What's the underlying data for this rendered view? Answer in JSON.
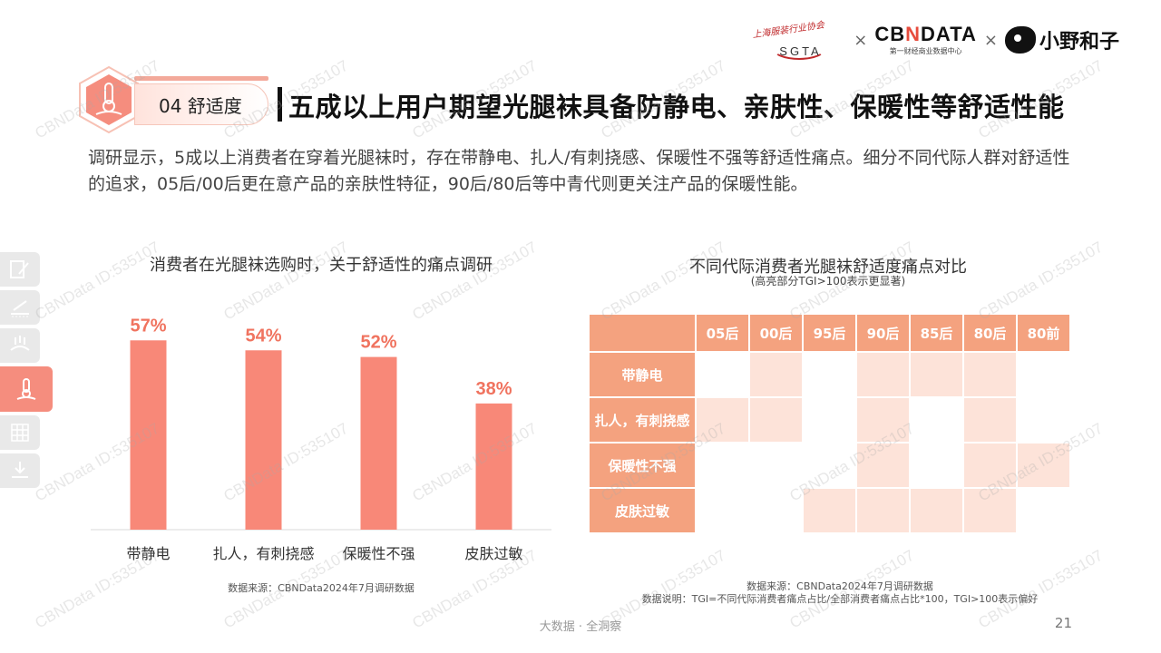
{
  "header": {
    "partner1_acronym": "SGTA",
    "times1": "×",
    "partner2_name": "CBNDATA",
    "partner2_sub": "第一财经商业数据中心",
    "times2": "×",
    "partner3_name": "小野和子"
  },
  "section": {
    "chapter_label": "04  舒适度",
    "title": "五成以上用户期望光腿袜具备防静电、亲肤性、保暖性等舒适性能"
  },
  "summary": "调研显示，5成以上消费者在穿着光腿袜时，存在带静电、扎人/有刺挠感、保暖性不强等舒适性痛点。细分不同代际人群对舒适性的追求，05后/00后更在意产品的亲肤性特征，90后/80后等中青代则更关注产品的保暖性能。",
  "watermark": "CBNData ID:535107",
  "colors": {
    "bar": "#f88878",
    "bar_label": "#f0735f",
    "header_cell": "#f4a27f",
    "highlight_cell": "#fde3d9",
    "accent": "#f58d7e"
  },
  "sidenav": {
    "items": [
      {
        "icon": "pen-paper-icon"
      },
      {
        "icon": "ruler-fabric-icon"
      },
      {
        "icon": "breathability-icon"
      },
      {
        "icon": "thermometer-icon",
        "active": true
      },
      {
        "icon": "mesh-pattern-icon"
      },
      {
        "icon": "download-tray-icon"
      }
    ]
  },
  "chart_data": [
    {
      "type": "bar",
      "title": "消费者在光腿袜选购时，关于舒适性的痛点调研",
      "categories": [
        "带静电",
        "扎人，有刺挠感",
        "保暖性不强",
        "皮肤过敏"
      ],
      "values": [
        57,
        54,
        52,
        38
      ],
      "value_labels": [
        "57%",
        "54%",
        "52%",
        "38%"
      ],
      "ylim": [
        0,
        65
      ],
      "source": "数据来源：CBNData2024年7月调研数据"
    },
    {
      "type": "heatmap",
      "title": "不同代际消费者光腿袜舒适度痛点对比",
      "subtitle": "(高亮部分TGI>100表示更显著)",
      "columns": [
        "05后",
        "00后",
        "95后",
        "90后",
        "85后",
        "80后",
        "80前"
      ],
      "rows": [
        "带静电",
        "扎人，有刺挠感",
        "保暖性不强",
        "皮肤过敏"
      ],
      "highlight": [
        [
          false,
          true,
          false,
          true,
          true,
          true,
          false
        ],
        [
          true,
          true,
          false,
          true,
          false,
          true,
          false
        ],
        [
          false,
          false,
          false,
          true,
          false,
          true,
          true
        ],
        [
          false,
          false,
          true,
          true,
          true,
          true,
          false
        ]
      ],
      "source": "数据来源：CBNData2024年7月调研数据",
      "note": "数据说明：TGI=不同代际消费者痛点占比/全部消费者痛点占比*100，TGI>100表示偏好"
    }
  ],
  "footer": {
    "tagline": "大数据 · 全洞察",
    "page_number": "21"
  }
}
